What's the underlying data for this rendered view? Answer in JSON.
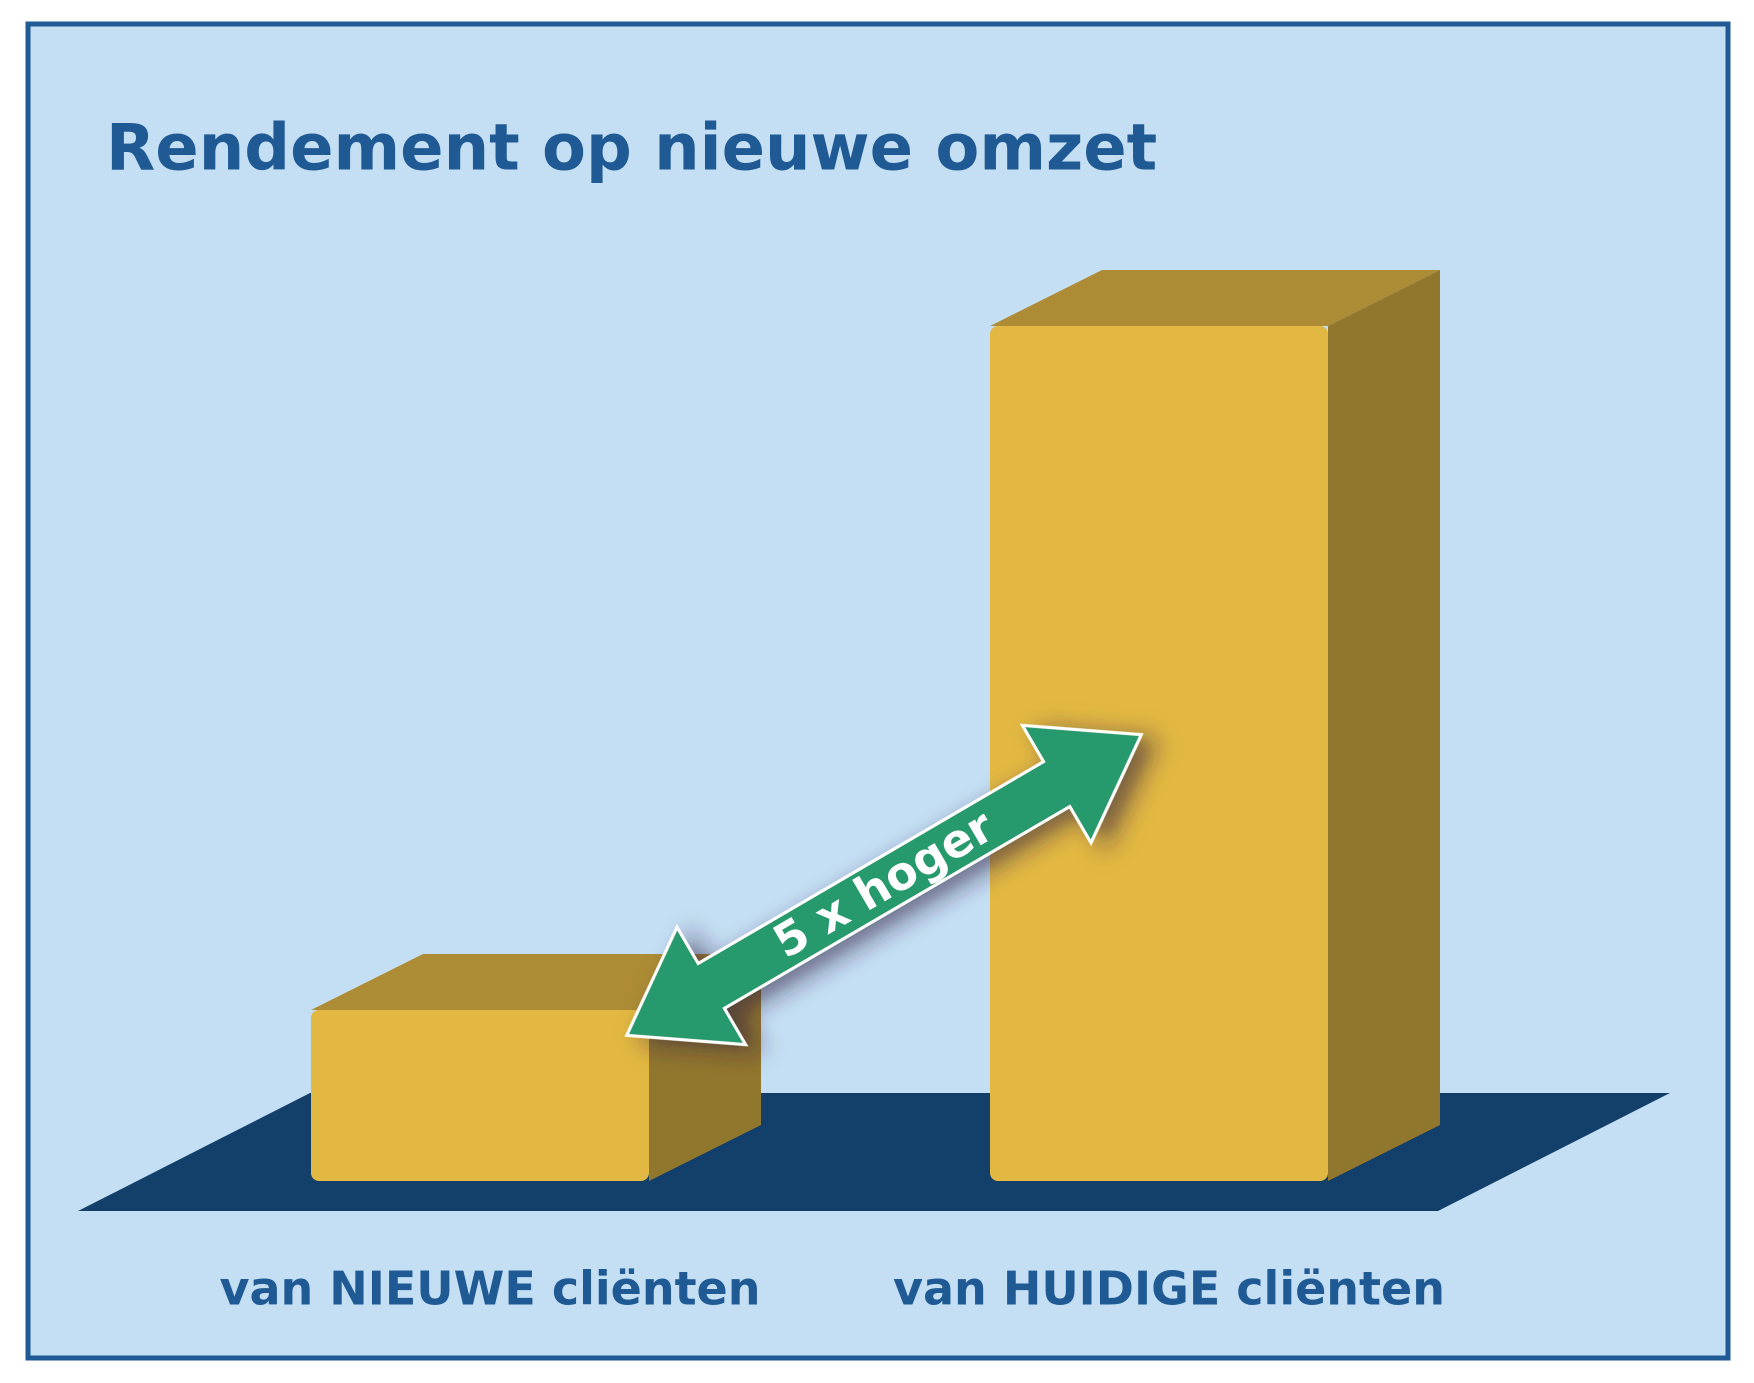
{
  "chart_data": {
    "type": "bar",
    "title": "Rendement op nieuwe omzet",
    "categories": [
      "van NIEUWE cliënten",
      "van HUIDIGE cliënten"
    ],
    "values": [
      1,
      5
    ],
    "color": "#e2b842",
    "annotation": "5 x hoger"
  }
}
